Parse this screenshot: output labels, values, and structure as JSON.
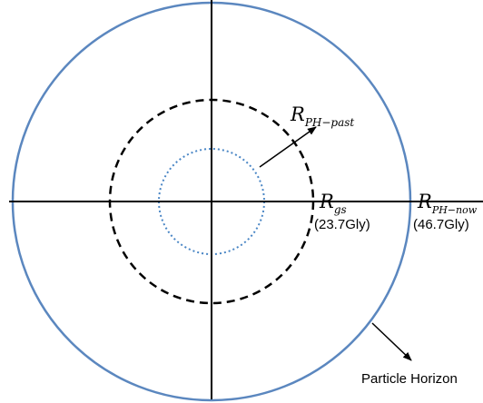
{
  "labels": {
    "r_ph_past": {
      "main": "R",
      "sub": "PH−past"
    },
    "r_gs": {
      "main": "R",
      "sub": "gs",
      "value": "(23.7Gly)"
    },
    "r_ph_now": {
      "main": "R",
      "sub": "PH−now",
      "value": "(46.7Gly)"
    },
    "particle_horizon": "Particle Horizon"
  },
  "colors": {
    "horizon_circle": "#5b87bf",
    "inner_dotted_circle": "#4a86c5",
    "dashed_circle": "#000000",
    "axes": "#000000"
  }
}
